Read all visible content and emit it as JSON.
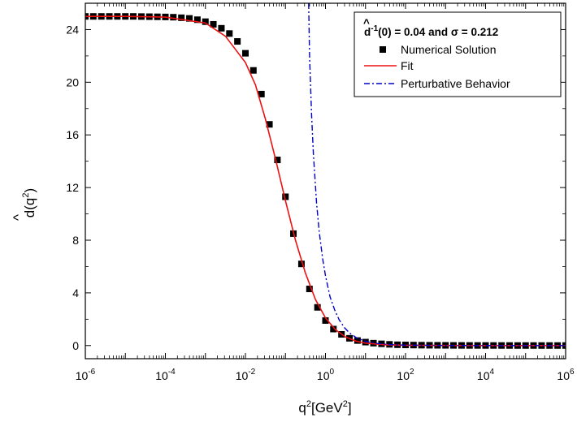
{
  "chart_data": {
    "type": "scatter",
    "x_scale": "log",
    "xlim_exponents": [
      -6,
      6
    ],
    "ylim": [
      -1,
      26
    ],
    "x_tick_exponents": [
      -6,
      -4,
      -2,
      0,
      2,
      4,
      6
    ],
    "x_tick_base": "10",
    "y_ticks": [
      "0",
      "4",
      "8",
      "12",
      "16",
      "20",
      "24"
    ],
    "xlabel": {
      "main": "q",
      "sup1": "2",
      "mid": "[GeV",
      "sup2": "2",
      "end": "]"
    },
    "ylabel": {
      "hat": "^",
      "main": "d(q",
      "sup": "2",
      "end": ")"
    },
    "legend": {
      "position": "top-right",
      "title": {
        "hat": "^",
        "d": "d",
        "sup": "-1",
        "rest": "(0) = 0.04 and σ = 0.212"
      },
      "entries": [
        "Numerical Solution",
        "Fit",
        "Perturbative Behavior"
      ]
    },
    "colors": {
      "numerical": "#000000",
      "fit": "#ee1111",
      "perturbative": "#0000cc"
    },
    "series": [
      {
        "name": "Numerical Solution",
        "style": "square-markers",
        "x": [
          1e-06,
          1.58e-06,
          2.51e-06,
          3.98e-06,
          6.31e-06,
          1e-05,
          1.58e-05,
          2.51e-05,
          3.98e-05,
          6.31e-05,
          0.0001,
          0.000158,
          0.000251,
          0.000398,
          0.000631,
          0.001,
          0.00158,
          0.00251,
          0.00398,
          0.00631,
          0.01,
          0.0158,
          0.0251,
          0.0398,
          0.0631,
          0.1,
          0.158,
          0.251,
          0.398,
          0.631,
          1.0,
          1.58,
          2.51,
          3.98,
          6.31,
          10.0,
          15.8,
          25.1,
          39.8,
          63.1,
          100.0,
          158.0,
          251.0,
          398.0,
          631.0,
          1000.0,
          1580.0,
          2510.0,
          3980.0,
          6310.0,
          10000.0,
          15800.0,
          25100.0,
          39800.0,
          63100.0,
          100000.0,
          158000.0,
          251000.0,
          398000.0,
          631000.0,
          1000000.0
        ],
        "y": [
          25.0,
          25.0,
          25.0,
          25.0,
          25.0,
          25.0,
          25.0,
          24.99,
          24.98,
          24.97,
          24.96,
          24.94,
          24.9,
          24.85,
          24.75,
          24.6,
          24.4,
          24.1,
          23.7,
          23.1,
          22.2,
          20.9,
          19.1,
          16.8,
          14.1,
          11.3,
          8.5,
          6.2,
          4.3,
          2.9,
          1.9,
          1.25,
          0.85,
          0.55,
          0.38,
          0.26,
          0.18,
          0.13,
          0.09,
          0.06,
          0.045,
          0.035,
          0.027,
          0.021,
          0.017,
          0.014,
          0.011,
          0.009,
          0.007,
          0.006,
          0.005,
          0.004,
          0.003,
          0.003,
          0.002,
          0.002,
          0.002,
          0.001,
          0.001,
          0.001,
          0.001
        ]
      },
      {
        "name": "Fit",
        "style": "solid-line",
        "x": [
          1e-06,
          1e-05,
          0.0001,
          0.001,
          0.00316,
          0.01,
          0.0178,
          0.0316,
          0.0562,
          0.1,
          0.178,
          0.316,
          0.562,
          1.0,
          1.78,
          3.16,
          5.62,
          10.0,
          31.6,
          100.0,
          1000.0,
          10000.0,
          100000.0,
          1000000.0
        ],
        "y": [
          25.0,
          25.0,
          24.95,
          24.5,
          23.5,
          21.5,
          19.8,
          17.2,
          14.2,
          11.0,
          8.0,
          5.5,
          3.5,
          2.1,
          1.2,
          0.65,
          0.35,
          0.18,
          0.06,
          0.02,
          0.003,
          0.0,
          0.0,
          0.0
        ]
      },
      {
        "name": "Perturbative Behavior",
        "style": "dash-dot-line",
        "x": [
          0.38,
          0.4,
          0.45,
          0.5,
          0.6,
          0.7,
          0.85,
          1.0,
          1.3,
          1.7,
          2.2,
          3.0,
          4.0,
          6.0,
          10.0,
          20.0,
          50.0,
          100.0,
          1000.0,
          10000.0,
          100000.0,
          1000000.0
        ],
        "y": [
          26.0,
          22.0,
          17.5,
          14.5,
          10.8,
          8.6,
          6.6,
          5.3,
          3.7,
          2.7,
          1.95,
          1.35,
          0.95,
          0.58,
          0.32,
          0.15,
          0.06,
          0.03,
          0.005,
          0.001,
          0.0,
          0.0
        ]
      }
    ]
  }
}
